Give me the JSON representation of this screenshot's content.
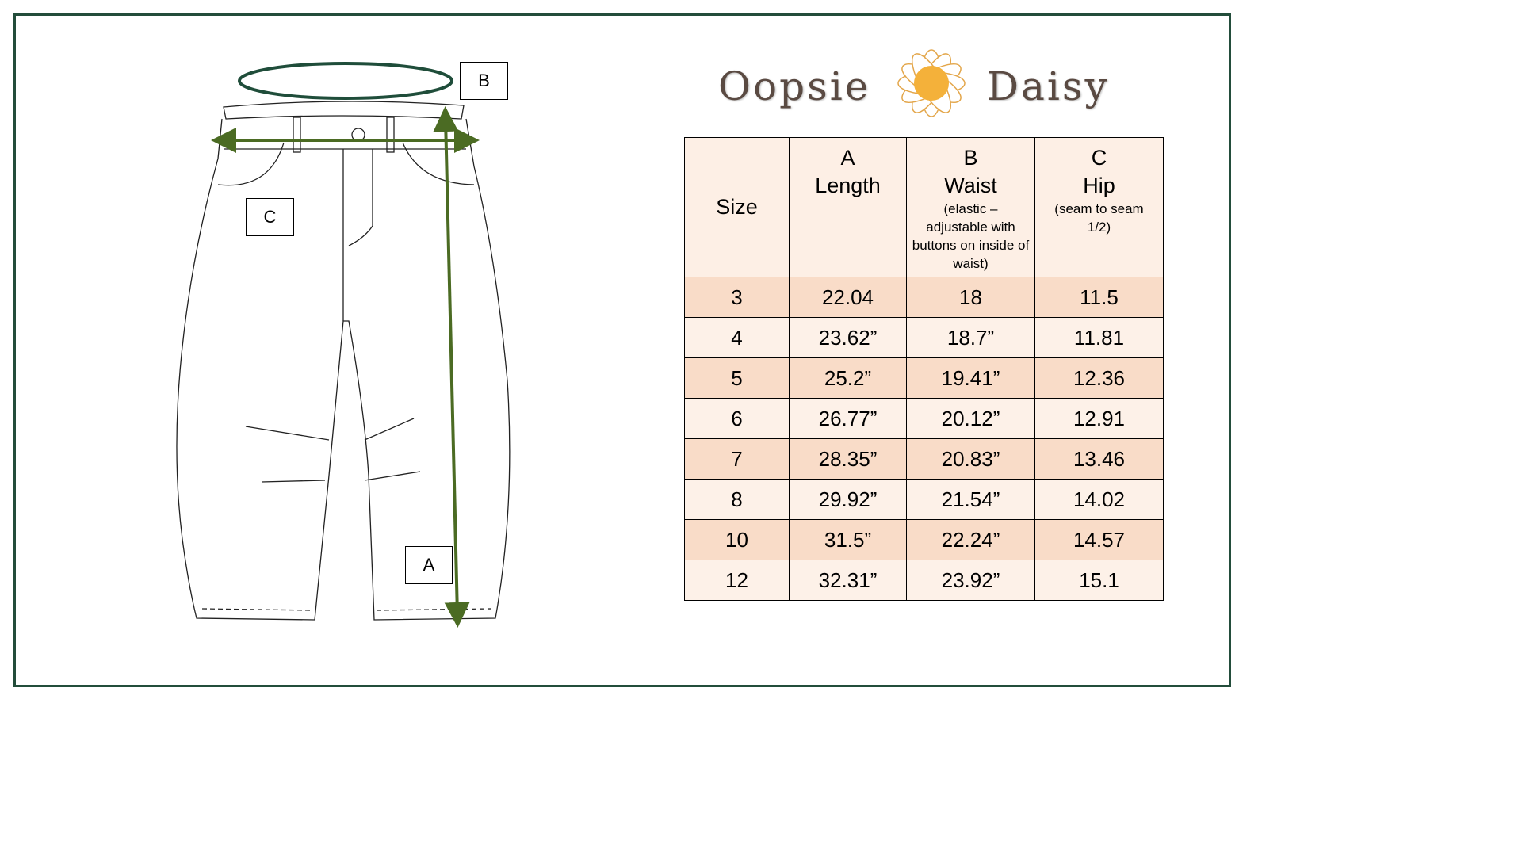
{
  "brand": {
    "name_left": "Oopsie",
    "name_right": "Daisy",
    "flower_color": "#f4b13a"
  },
  "diagram": {
    "labels": {
      "a": "A",
      "b": "B",
      "c": "C"
    },
    "arrow_color": "#4b6b23",
    "waist_ring_color": "#1f4d3a"
  },
  "table": {
    "headers": [
      {
        "letter": "",
        "title": "Size",
        "note": ""
      },
      {
        "letter": "A",
        "title": "Length",
        "note": ""
      },
      {
        "letter": "B",
        "title": "Waist",
        "note": "(elastic – adjustable with buttons on inside of waist)"
      },
      {
        "letter": "C",
        "title": "Hip",
        "note": "(seam to seam 1/2)"
      }
    ],
    "rows": [
      [
        "3",
        "22.04",
        "18",
        "11.5"
      ],
      [
        "4",
        "23.62”",
        "18.7”",
        "11.81"
      ],
      [
        "5",
        "25.2”",
        "19.41”",
        "12.36"
      ],
      [
        "6",
        "26.77”",
        "20.12”",
        "12.91"
      ],
      [
        "7",
        "28.35”",
        "20.83”",
        "13.46"
      ],
      [
        "8",
        "29.92”",
        "21.54”",
        "14.02"
      ],
      [
        "10",
        "31.5”",
        "22.24”",
        "14.57"
      ],
      [
        "12",
        "32.31”",
        "23.92”",
        "15.1"
      ]
    ]
  }
}
